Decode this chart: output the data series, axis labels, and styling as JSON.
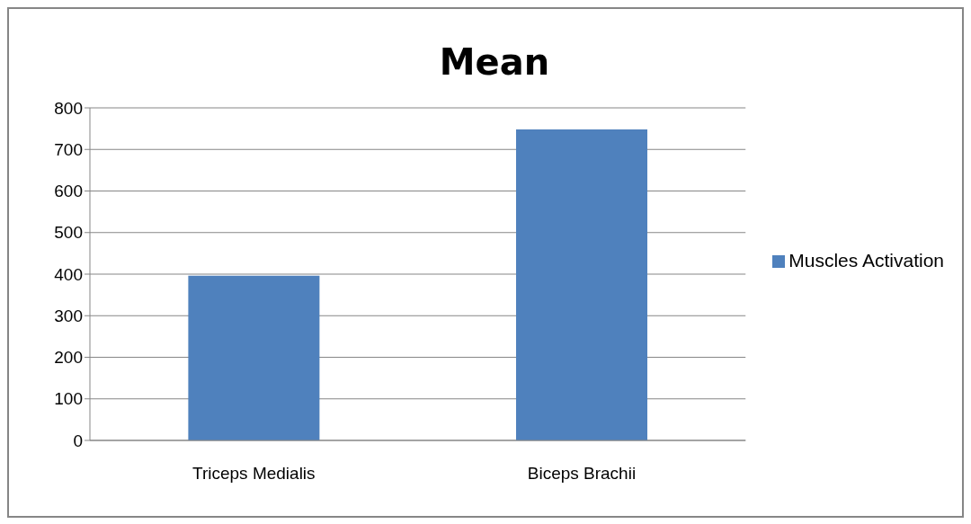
{
  "chart_data": {
    "type": "bar",
    "title": "Mean",
    "categories": [
      "Triceps Medialis",
      "Biceps Brachii"
    ],
    "series": [
      {
        "name": "Muscles Activation",
        "color": "#4f81bd",
        "values": [
          396,
          748
        ]
      }
    ],
    "ylim": [
      0,
      800
    ],
    "yticks": [
      0,
      100,
      200,
      300,
      400,
      500,
      600,
      700,
      800
    ],
    "grid": "y",
    "legend": "right"
  }
}
